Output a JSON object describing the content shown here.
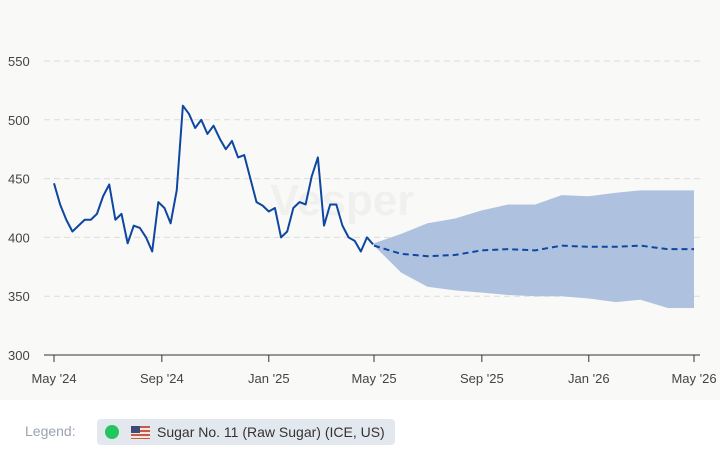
{
  "chart_data": {
    "type": "line",
    "title": "",
    "xlabel": "",
    "ylabel": "",
    "ylim": [
      300,
      550
    ],
    "yticks": [
      "300",
      "350",
      "400",
      "450",
      "500",
      "550"
    ],
    "xticks": [
      {
        "date": "2024-05-01",
        "label": "May '24"
      },
      {
        "date": "2024-09-01",
        "label": "Sep '24"
      },
      {
        "date": "2025-01-01",
        "label": "Jan '25"
      },
      {
        "date": "2025-05-01",
        "label": "May '25"
      },
      {
        "date": "2025-09-01",
        "label": "Sep '25"
      },
      {
        "date": "2026-01-01",
        "label": "Jan '26"
      },
      {
        "date": "2026-05-01",
        "label": "May '26"
      }
    ],
    "grid": true,
    "colors": {
      "history": "#0d47a1",
      "forecast": "#0d47a1",
      "band": "#aec2e0"
    },
    "history": {
      "name": "Sugar No. 11 (Raw Sugar) (ICE, US)",
      "dates": [
        "2024-05-01",
        "2024-05-08",
        "2024-05-15",
        "2024-05-22",
        "2024-05-29",
        "2024-06-05",
        "2024-06-12",
        "2024-06-19",
        "2024-06-26",
        "2024-07-03",
        "2024-07-10",
        "2024-07-17",
        "2024-07-24",
        "2024-07-31",
        "2024-08-07",
        "2024-08-14",
        "2024-08-21",
        "2024-08-28",
        "2024-09-04",
        "2024-09-11",
        "2024-09-18",
        "2024-09-25",
        "2024-10-02",
        "2024-10-09",
        "2024-10-16",
        "2024-10-23",
        "2024-10-30",
        "2024-11-06",
        "2024-11-13",
        "2024-11-20",
        "2024-11-27",
        "2024-12-04",
        "2024-12-11",
        "2024-12-18",
        "2024-12-25",
        "2025-01-01",
        "2025-01-08",
        "2025-01-15",
        "2025-01-22",
        "2025-01-29",
        "2025-02-05",
        "2025-02-12",
        "2025-02-19",
        "2025-02-26",
        "2025-03-05",
        "2025-03-12",
        "2025-03-19",
        "2025-03-26",
        "2025-04-02",
        "2025-04-09",
        "2025-04-16",
        "2025-04-23",
        "2025-04-30"
      ],
      "values": [
        446,
        428,
        415,
        405,
        410,
        415,
        415,
        420,
        435,
        445,
        415,
        420,
        395,
        410,
        408,
        400,
        388,
        430,
        425,
        412,
        440,
        512,
        505,
        493,
        500,
        488,
        495,
        484,
        475,
        482,
        468,
        470,
        450,
        430,
        427,
        422,
        425,
        400,
        405,
        425,
        430,
        428,
        452,
        468,
        410,
        428,
        428,
        410,
        400,
        397,
        388,
        400,
        394
      ]
    },
    "forecast": {
      "dates": [
        "2025-05-01",
        "2025-06-01",
        "2025-07-01",
        "2025-08-01",
        "2025-09-01",
        "2025-10-01",
        "2025-11-01",
        "2025-12-01",
        "2026-01-01",
        "2026-02-01",
        "2026-03-01",
        "2026-04-01",
        "2026-05-01"
      ],
      "values": [
        393,
        386,
        384,
        385,
        389,
        390,
        389,
        393,
        392,
        392,
        393,
        390,
        390
      ],
      "upper": [
        395,
        403,
        412,
        416,
        423,
        428,
        428,
        436,
        435,
        438,
        440,
        440,
        440
      ],
      "lower": [
        393,
        370,
        358,
        355,
        353,
        351,
        350,
        350,
        348,
        345,
        347,
        340,
        340
      ]
    }
  },
  "watermark": "Vesper",
  "legend": {
    "label": "Legend:",
    "items": [
      {
        "label": "Sugar No. 11 (Raw Sugar) (ICE, US)",
        "dot_color": "#22c55e",
        "flag": "us-flag-icon"
      }
    ]
  }
}
